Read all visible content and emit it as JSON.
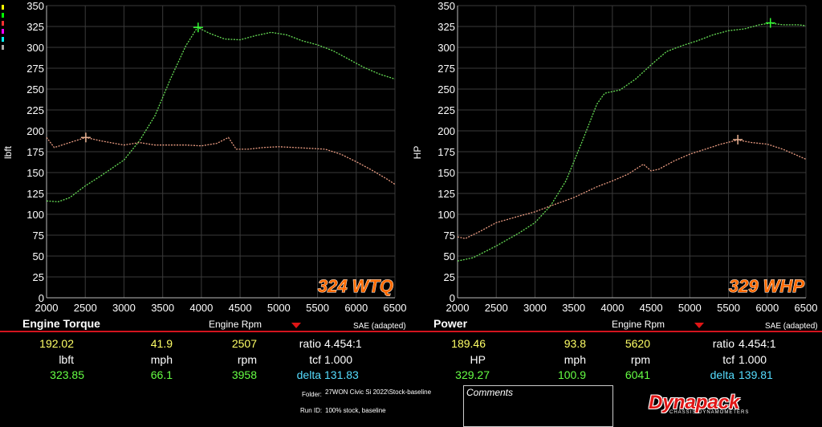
{
  "colors": {
    "run1": "#66dd55",
    "run2": "#e89a80",
    "grid": "#3a3a3a",
    "accent": "#d2141e",
    "badge": "#ff6a00"
  },
  "legend_swatches": [
    "#ffff00",
    "#00ff00",
    "#ff3030",
    "#ff00ff",
    "#00ffff",
    "#aaaaaa"
  ],
  "chart_data": [
    {
      "type": "line",
      "ylabel": "lbft",
      "xlim": [
        2000,
        6500
      ],
      "ylim": [
        0,
        350
      ],
      "xticks": [
        2000,
        2500,
        3000,
        3500,
        4000,
        4500,
        5000,
        5500,
        6000,
        6500
      ],
      "yticks": [
        0,
        25,
        50,
        75,
        100,
        125,
        150,
        175,
        200,
        225,
        250,
        275,
        300,
        325,
        350
      ],
      "grid": true,
      "badge": "324 WTQ",
      "series": [
        {
          "color": "#66dd55",
          "x": [
            2000,
            2150,
            2300,
            2500,
            2700,
            3000,
            3200,
            3400,
            3600,
            3800,
            3950,
            4100,
            4300,
            4500,
            4700,
            4900,
            5100,
            5300,
            5500,
            5700,
            5900,
            6100,
            6300,
            6500
          ],
          "y": [
            116,
            115,
            120,
            134,
            146,
            165,
            188,
            218,
            262,
            302,
            324,
            317,
            310,
            309,
            314,
            318,
            315,
            308,
            303,
            296,
            286,
            276,
            268,
            262
          ],
          "marker": [
            3958,
            323.85
          ]
        },
        {
          "color": "#e89a80",
          "x": [
            2000,
            2100,
            2300,
            2507,
            2700,
            3000,
            3200,
            3400,
            3600,
            3800,
            4000,
            4200,
            4350,
            4450,
            4600,
            4800,
            5000,
            5200,
            5400,
            5600,
            5800,
            6000,
            6200,
            6400,
            6500
          ],
          "y": [
            192,
            180,
            186,
            192,
            188,
            183,
            186,
            183,
            183,
            183,
            182,
            185,
            192,
            178,
            178,
            180,
            181,
            180,
            179,
            178,
            172,
            163,
            153,
            142,
            136
          ],
          "marker": [
            2507,
            192.02
          ]
        }
      ]
    },
    {
      "type": "line",
      "ylabel": "HP",
      "xlim": [
        2000,
        6500
      ],
      "ylim": [
        0,
        350
      ],
      "xticks": [
        2000,
        2500,
        3000,
        3500,
        4000,
        4500,
        5000,
        5500,
        6000,
        6500
      ],
      "yticks": [
        0,
        25,
        50,
        75,
        100,
        125,
        150,
        175,
        200,
        225,
        250,
        275,
        300,
        325,
        350
      ],
      "grid": true,
      "badge": "329 WHP",
      "series": [
        {
          "color": "#66dd55",
          "x": [
            2000,
            2200,
            2500,
            2800,
            3000,
            3200,
            3400,
            3600,
            3800,
            3900,
            4100,
            4300,
            4500,
            4700,
            4900,
            5100,
            5300,
            5500,
            5700,
            5900,
            6041,
            6200,
            6400,
            6500
          ],
          "y": [
            44,
            48,
            62,
            78,
            90,
            110,
            140,
            185,
            232,
            245,
            249,
            262,
            279,
            295,
            302,
            308,
            315,
            320,
            322,
            327,
            329,
            327,
            327,
            326
          ],
          "marker": [
            6041,
            329.27
          ]
        },
        {
          "color": "#e89a80",
          "x": [
            2000,
            2100,
            2300,
            2500,
            2800,
            3000,
            3200,
            3500,
            3800,
            4000,
            4200,
            4400,
            4500,
            4600,
            4800,
            5000,
            5200,
            5400,
            5620,
            5800,
            6000,
            6200,
            6400,
            6500
          ],
          "y": [
            73,
            71,
            80,
            90,
            98,
            103,
            110,
            120,
            133,
            140,
            148,
            160,
            152,
            154,
            164,
            172,
            178,
            184,
            189,
            186,
            184,
            178,
            170,
            166
          ],
          "marker": [
            5620,
            189.46
          ]
        }
      ]
    }
  ],
  "footer": {
    "left": {
      "title": "Engine Torque",
      "axis": "Engine Rpm",
      "sae": "SAE (adapted)",
      "row1": [
        "192.02",
        "41.9",
        "2507",
        "ratio",
        "4.454:1"
      ],
      "row2": [
        "lbft",
        "mph",
        "rpm",
        "tcf",
        "1.000"
      ],
      "row3": [
        "323.85",
        "66.1",
        "3958",
        "delta",
        "131.83"
      ]
    },
    "right": {
      "title": "Power",
      "axis": "Engine Rpm",
      "sae": "SAE (adapted)",
      "row1": [
        "189.46",
        "93.8",
        "5620",
        "ratio",
        "4.454:1"
      ],
      "row2": [
        "HP",
        "mph",
        "rpm",
        "tcf",
        "1.000"
      ],
      "row3": [
        "329.27",
        "100.9",
        "6041",
        "delta",
        "139.81"
      ]
    },
    "folder_label": "Folder:",
    "folder_value": "27WON Civic Si 2022\\Stock-baseline",
    "runid_label": "Run ID:",
    "runid_value": "100% stock, baseline",
    "comments_label": "Comments",
    "logo": "Dynapack",
    "logo_sub": "CHASSIS DYNAMOMETERS"
  }
}
